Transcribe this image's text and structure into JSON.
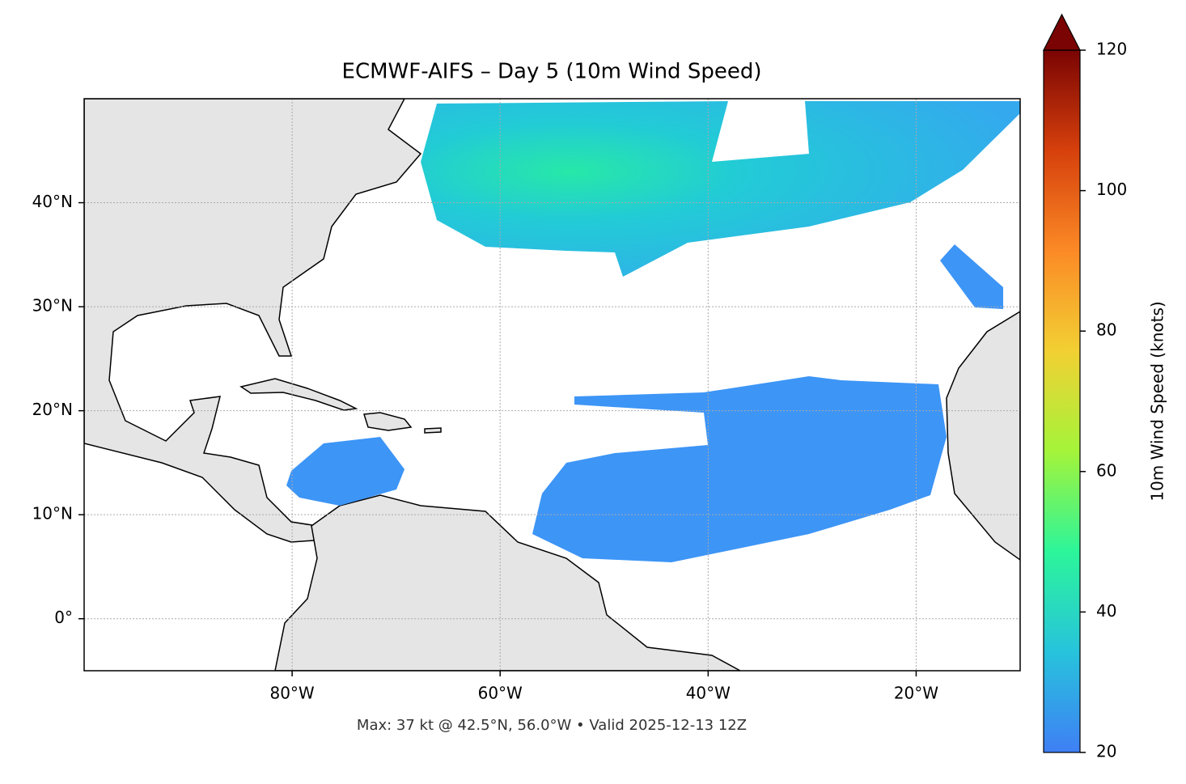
{
  "chart_data": {
    "type": "map",
    "title": "ECMWF-AIFS – Day 5 (10m Wind Speed)",
    "footer": "Max: 37 kt @ 42.5°N, 56.0°W • Valid 2025-12-13 12Z",
    "xlim": [
      -100,
      -10
    ],
    "ylim": [
      -5,
      50
    ],
    "xticks": [
      {
        "value": -80,
        "label": "80°W"
      },
      {
        "value": -60,
        "label": "60°W"
      },
      {
        "value": -40,
        "label": "40°W"
      },
      {
        "value": -20,
        "label": "20°W"
      }
    ],
    "yticks": [
      {
        "value": 0,
        "label": "0°"
      },
      {
        "value": 10,
        "label": "10°N"
      },
      {
        "value": 20,
        "label": "20°N"
      },
      {
        "value": 30,
        "label": "30°N"
      },
      {
        "value": 40,
        "label": "40°N"
      }
    ],
    "grid": true,
    "colorbar": {
      "label": "10m Wind Speed (knots)",
      "lim": [
        20,
        120
      ],
      "ticks": [
        20,
        40,
        60,
        80,
        100,
        120
      ],
      "colors": [
        "#3f7ff5",
        "#27c3dc",
        "#2cf59a",
        "#a4f43a",
        "#f2d033",
        "#fb8a26",
        "#d6400c",
        "#7a0403"
      ],
      "extend": "max"
    }
  }
}
